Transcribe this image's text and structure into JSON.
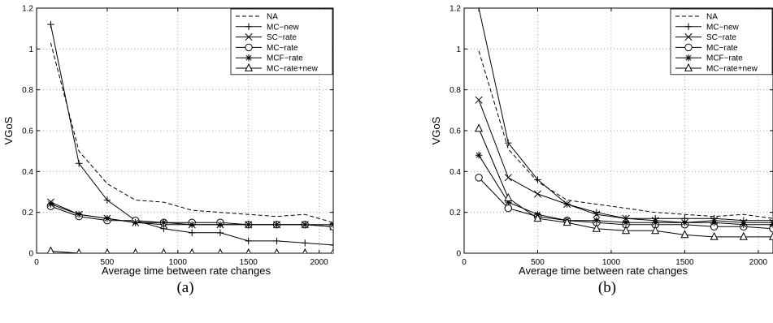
{
  "chart_data": [
    {
      "type": "line",
      "caption": "(a)",
      "xlabel": "Average time between rate changes",
      "ylabel": "VGoS",
      "xlim": [
        0,
        2100
      ],
      "ylim": [
        0,
        1.2
      ],
      "xticks": [
        0,
        500,
        1000,
        1500,
        2000
      ],
      "xtick_labels": [
        "0",
        "500",
        "1000",
        "1500",
        "2000"
      ],
      "yticks": [
        0,
        0.2,
        0.4,
        0.6,
        0.8,
        1,
        1.2
      ],
      "ytick_labels": [
        "0",
        "0.2",
        "0.4",
        "0.6",
        "0.8",
        "1",
        "1.2"
      ],
      "grid": true,
      "legend_position": "top-right",
      "series": [
        {
          "name": "NA",
          "marker": "none",
          "dashed": true,
          "x": [
            100,
            300,
            500,
            700,
            900,
            1100,
            1300,
            1500,
            1700,
            1900,
            2100
          ],
          "y": [
            1.03,
            0.5,
            0.34,
            0.26,
            0.25,
            0.21,
            0.2,
            0.19,
            0.18,
            0.19,
            0.15
          ]
        },
        {
          "name": "MC−new",
          "marker": "plus",
          "dashed": false,
          "x": [
            100,
            300,
            500,
            700,
            900,
            1100,
            1300,
            1500,
            1700,
            1900,
            2100
          ],
          "y": [
            1.12,
            0.44,
            0.26,
            0.16,
            0.12,
            0.1,
            0.1,
            0.06,
            0.06,
            0.05,
            0.04
          ]
        },
        {
          "name": "SC−rate",
          "marker": "x",
          "dashed": false,
          "x": [
            100,
            300,
            500,
            700,
            900,
            1100,
            1300,
            1500,
            1700,
            1900,
            2100
          ],
          "y": [
            0.25,
            0.19,
            0.17,
            0.15,
            0.14,
            0.14,
            0.14,
            0.14,
            0.14,
            0.14,
            0.13
          ]
        },
        {
          "name": "MC−rate",
          "marker": "circle",
          "dashed": false,
          "x": [
            100,
            300,
            500,
            700,
            900,
            1100,
            1300,
            1500,
            1700,
            1900,
            2100
          ],
          "y": [
            0.23,
            0.18,
            0.16,
            0.16,
            0.15,
            0.15,
            0.15,
            0.14,
            0.14,
            0.14,
            0.13
          ]
        },
        {
          "name": "MCF−rate",
          "marker": "star",
          "dashed": false,
          "x": [
            100,
            300,
            500,
            700,
            900,
            1100,
            1300,
            1500,
            1700,
            1900,
            2100
          ],
          "y": [
            0.24,
            0.19,
            0.17,
            0.15,
            0.15,
            0.14,
            0.14,
            0.14,
            0.14,
            0.14,
            0.14
          ]
        },
        {
          "name": "MC−rate+new",
          "marker": "triangle",
          "dashed": false,
          "x": [
            100,
            300,
            500,
            700,
            900,
            1100,
            1300,
            1500,
            1700,
            1900,
            2100
          ],
          "y": [
            0.01,
            0.0,
            0.0,
            0.0,
            0.0,
            0.0,
            0.0,
            0.0,
            0.0,
            0.0,
            0.0
          ]
        }
      ]
    },
    {
      "type": "line",
      "caption": "(b)",
      "xlabel": "Average time between rate changes",
      "ylabel": "VGoS",
      "xlim": [
        0,
        2100
      ],
      "ylim": [
        0,
        1.2
      ],
      "xticks": [
        0,
        500,
        1000,
        1500,
        2000
      ],
      "xtick_labels": [
        "0",
        "500",
        "1000",
        "1500",
        "2000"
      ],
      "yticks": [
        0,
        0.2,
        0.4,
        0.6,
        0.8,
        1,
        1.2
      ],
      "ytick_labels": [
        "0",
        "0.2",
        "0.4",
        "0.6",
        "0.8",
        "1",
        "1.2"
      ],
      "grid": true,
      "legend_position": "top-right",
      "series": [
        {
          "name": "NA",
          "marker": "none",
          "dashed": true,
          "x": [
            100,
            300,
            500,
            700,
            900,
            1100,
            1300,
            1500,
            1700,
            1900,
            2100
          ],
          "y": [
            0.99,
            0.51,
            0.35,
            0.26,
            0.24,
            0.22,
            0.2,
            0.19,
            0.18,
            0.19,
            0.17
          ]
        },
        {
          "name": "MC−new",
          "marker": "plus",
          "dashed": false,
          "x": [
            100,
            300,
            500,
            700,
            900,
            1100,
            1300,
            1500,
            1700,
            1900,
            2100
          ],
          "y": [
            1.2,
            0.54,
            0.36,
            0.24,
            0.2,
            0.17,
            0.17,
            0.17,
            0.17,
            0.16,
            0.16
          ]
        },
        {
          "name": "SC−rate",
          "marker": "x",
          "dashed": false,
          "x": [
            100,
            300,
            500,
            700,
            900,
            1100,
            1300,
            1500,
            1700,
            1900,
            2100
          ],
          "y": [
            0.75,
            0.37,
            0.29,
            0.24,
            0.19,
            0.17,
            0.16,
            0.15,
            0.16,
            0.15,
            0.15
          ]
        },
        {
          "name": "MC−rate",
          "marker": "circle",
          "dashed": false,
          "x": [
            100,
            300,
            500,
            700,
            900,
            1100,
            1300,
            1500,
            1700,
            1900,
            2100
          ],
          "y": [
            0.37,
            0.22,
            0.18,
            0.16,
            0.15,
            0.14,
            0.14,
            0.14,
            0.13,
            0.13,
            0.12
          ]
        },
        {
          "name": "MCF−rate",
          "marker": "star",
          "dashed": false,
          "x": [
            100,
            300,
            500,
            700,
            900,
            1100,
            1300,
            1500,
            1700,
            1900,
            2100
          ],
          "y": [
            0.48,
            0.25,
            0.19,
            0.16,
            0.16,
            0.15,
            0.15,
            0.15,
            0.15,
            0.14,
            0.14
          ]
        },
        {
          "name": "MC−rate+new",
          "marker": "triangle",
          "dashed": false,
          "x": [
            100,
            300,
            500,
            700,
            900,
            1100,
            1300,
            1500,
            1700,
            1900,
            2100
          ],
          "y": [
            0.61,
            0.27,
            0.17,
            0.15,
            0.12,
            0.11,
            0.11,
            0.09,
            0.08,
            0.08,
            0.08
          ]
        }
      ]
    }
  ]
}
